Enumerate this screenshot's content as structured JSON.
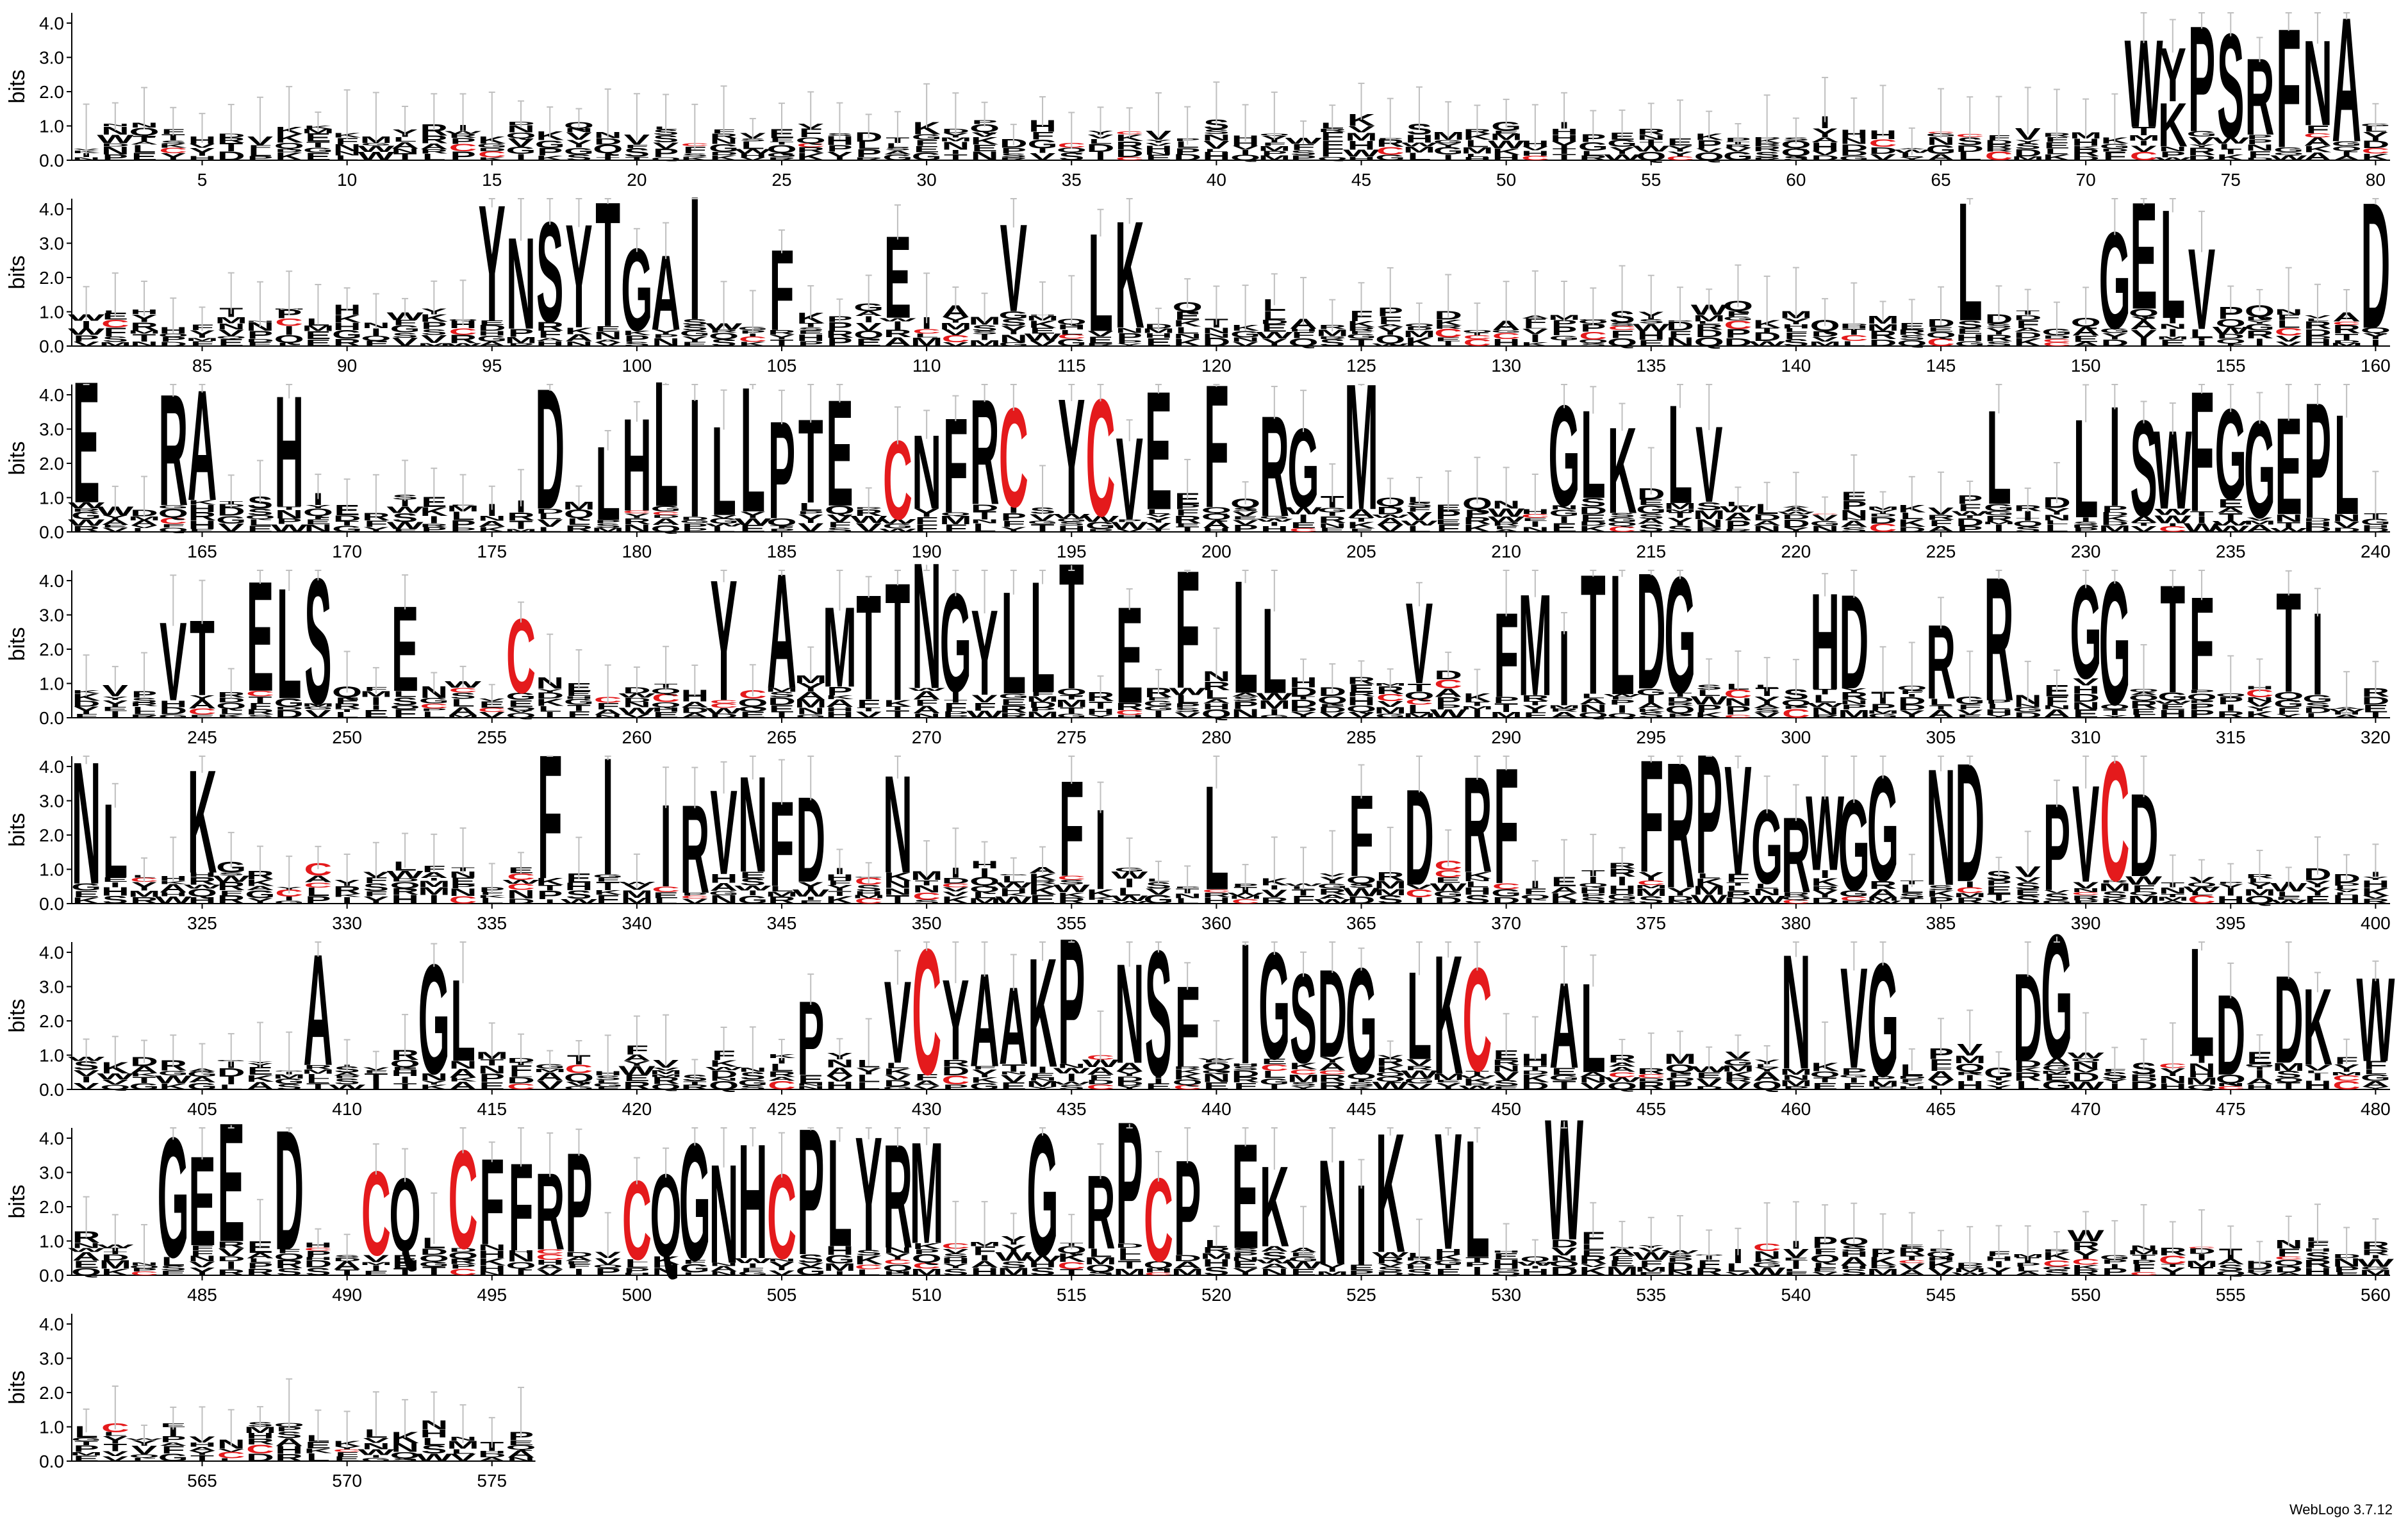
{
  "chart_data": {
    "type": "sequence-logo",
    "ylabel": "bits",
    "y_ticks": [
      "0.0",
      "1.0",
      "2.0",
      "3.0",
      "4.0"
    ],
    "ylim": [
      0,
      4.3
    ],
    "positions_per_row": 80,
    "total_positions": 576,
    "x_tick_interval": 5,
    "rows": 8,
    "highlight_color": "#e41a1c",
    "letter_color": "#000000",
    "errorbar_color": "#bfbfbf",
    "stacks": [
      {
        "pos": 72,
        "letters": "W"
      },
      {
        "pos": 73,
        "letters": "YK"
      },
      {
        "pos": 74,
        "letters": "P"
      },
      {
        "pos": 75,
        "letters": "S"
      },
      {
        "pos": 76,
        "letters": "R"
      },
      {
        "pos": 77,
        "letters": "F"
      },
      {
        "pos": 78,
        "letters": "N"
      },
      {
        "pos": 79,
        "letters": "A"
      },
      {
        "pos": 96,
        "letters": "N"
      },
      {
        "pos": 95,
        "letters": "Y"
      },
      {
        "pos": 97,
        "letters": "S"
      },
      {
        "pos": 98,
        "letters": "Y"
      },
      {
        "pos": 99,
        "letters": "T"
      },
      {
        "pos": 100,
        "letters": "G"
      },
      {
        "pos": 101,
        "letters": "A"
      },
      {
        "pos": 102,
        "letters": "I"
      },
      {
        "pos": 105,
        "letters": "F"
      },
      {
        "pos": 109,
        "letters": "E"
      },
      {
        "pos": 113,
        "letters": "V"
      },
      {
        "pos": 116,
        "letters": "L"
      },
      {
        "pos": 117,
        "letters": "K"
      },
      {
        "pos": 146,
        "letters": "L"
      },
      {
        "pos": 151,
        "letters": "G"
      },
      {
        "pos": 152,
        "letters": "E"
      },
      {
        "pos": 153,
        "letters": "L"
      },
      {
        "pos": 154,
        "letters": "V"
      },
      {
        "pos": 160,
        "letters": "D"
      },
      {
        "pos": 161,
        "letters": "E"
      },
      {
        "pos": 164,
        "letters": "R"
      },
      {
        "pos": 165,
        "letters": "A"
      },
      {
        "pos": 168,
        "letters": "H"
      },
      {
        "pos": 177,
        "letters": "D"
      },
      {
        "pos": 179,
        "letters": "L"
      },
      {
        "pos": 180,
        "letters": "H"
      },
      {
        "pos": 181,
        "letters": "L"
      },
      {
        "pos": 182,
        "letters": "I"
      },
      {
        "pos": 183,
        "letters": "L"
      },
      {
        "pos": 184,
        "letters": "L"
      },
      {
        "pos": 185,
        "letters": "P"
      },
      {
        "pos": 186,
        "letters": "T"
      },
      {
        "pos": 187,
        "letters": "E"
      },
      {
        "pos": 189,
        "letters": "C"
      },
      {
        "pos": 190,
        "letters": "N"
      },
      {
        "pos": 191,
        "letters": "F"
      },
      {
        "pos": 192,
        "letters": "R"
      },
      {
        "pos": 193,
        "letters": "C"
      },
      {
        "pos": 195,
        "letters": "Y"
      },
      {
        "pos": 196,
        "letters": "C"
      },
      {
        "pos": 197,
        "letters": "V"
      },
      {
        "pos": 198,
        "letters": "E"
      },
      {
        "pos": 200,
        "letters": "F"
      },
      {
        "pos": 202,
        "letters": "R"
      },
      {
        "pos": 203,
        "letters": "G"
      },
      {
        "pos": 205,
        "letters": "M"
      },
      {
        "pos": 212,
        "letters": "G"
      },
      {
        "pos": 213,
        "letters": "L"
      },
      {
        "pos": 214,
        "letters": "K"
      },
      {
        "pos": 216,
        "letters": "L"
      },
      {
        "pos": 217,
        "letters": "V"
      },
      {
        "pos": 227,
        "letters": "L"
      },
      {
        "pos": 230,
        "letters": "L"
      },
      {
        "pos": 231,
        "letters": "I"
      },
      {
        "pos": 232,
        "letters": "S"
      },
      {
        "pos": 233,
        "letters": "W"
      },
      {
        "pos": 234,
        "letters": "F"
      },
      {
        "pos": 235,
        "letters": "G"
      },
      {
        "pos": 236,
        "letters": "G"
      },
      {
        "pos": 237,
        "letters": "E"
      },
      {
        "pos": 238,
        "letters": "P"
      },
      {
        "pos": 239,
        "letters": "L"
      },
      {
        "pos": 244,
        "letters": "V"
      },
      {
        "pos": 245,
        "letters": "T"
      },
      {
        "pos": 247,
        "letters": "E"
      },
      {
        "pos": 248,
        "letters": "L"
      },
      {
        "pos": 249,
        "letters": "S"
      },
      {
        "pos": 252,
        "letters": "E"
      },
      {
        "pos": 256,
        "letters": "C"
      },
      {
        "pos": 263,
        "letters": "Y"
      },
      {
        "pos": 265,
        "letters": "A"
      },
      {
        "pos": 267,
        "letters": "M"
      },
      {
        "pos": 268,
        "letters": "T"
      },
      {
        "pos": 269,
        "letters": "T"
      },
      {
        "pos": 270,
        "letters": "N"
      },
      {
        "pos": 271,
        "letters": "G"
      },
      {
        "pos": 272,
        "letters": "Y"
      },
      {
        "pos": 273,
        "letters": "L"
      },
      {
        "pos": 274,
        "letters": "L"
      },
      {
        "pos": 275,
        "letters": "T"
      },
      {
        "pos": 277,
        "letters": "E"
      },
      {
        "pos": 279,
        "letters": "F"
      },
      {
        "pos": 281,
        "letters": "L"
      },
      {
        "pos": 282,
        "letters": "L"
      },
      {
        "pos": 287,
        "letters": "V"
      },
      {
        "pos": 290,
        "letters": "F"
      },
      {
        "pos": 291,
        "letters": "M"
      },
      {
        "pos": 292,
        "letters": "I"
      },
      {
        "pos": 293,
        "letters": "T"
      },
      {
        "pos": 294,
        "letters": "L"
      },
      {
        "pos": 295,
        "letters": "D"
      },
      {
        "pos": 296,
        "letters": "G"
      },
      {
        "pos": 301,
        "letters": "H"
      },
      {
        "pos": 302,
        "letters": "D"
      },
      {
        "pos": 305,
        "letters": "R"
      },
      {
        "pos": 307,
        "letters": "R"
      },
      {
        "pos": 310,
        "letters": "G"
      },
      {
        "pos": 311,
        "letters": "G"
      },
      {
        "pos": 313,
        "letters": "T"
      },
      {
        "pos": 314,
        "letters": "F"
      },
      {
        "pos": 317,
        "letters": "T"
      },
      {
        "pos": 318,
        "letters": "I"
      },
      {
        "pos": 321,
        "letters": "N"
      },
      {
        "pos": 322,
        "letters": "L"
      },
      {
        "pos": 325,
        "letters": "K"
      },
      {
        "pos": 337,
        "letters": "F"
      },
      {
        "pos": 339,
        "letters": "I"
      },
      {
        "pos": 341,
        "letters": "I"
      },
      {
        "pos": 342,
        "letters": "R"
      },
      {
        "pos": 343,
        "letters": "V"
      },
      {
        "pos": 344,
        "letters": "N"
      },
      {
        "pos": 345,
        "letters": "F"
      },
      {
        "pos": 346,
        "letters": "D"
      },
      {
        "pos": 349,
        "letters": "N"
      },
      {
        "pos": 355,
        "letters": "F"
      },
      {
        "pos": 356,
        "letters": "I"
      },
      {
        "pos": 360,
        "letters": "L"
      },
      {
        "pos": 365,
        "letters": "F"
      },
      {
        "pos": 367,
        "letters": "D"
      },
      {
        "pos": 369,
        "letters": "R"
      },
      {
        "pos": 370,
        "letters": "F"
      },
      {
        "pos": 375,
        "letters": "F"
      },
      {
        "pos": 376,
        "letters": "R"
      },
      {
        "pos": 377,
        "letters": "P"
      },
      {
        "pos": 378,
        "letters": "V"
      },
      {
        "pos": 379,
        "letters": "G"
      },
      {
        "pos": 380,
        "letters": "R"
      },
      {
        "pos": 381,
        "letters": "W"
      },
      {
        "pos": 382,
        "letters": "G"
      },
      {
        "pos": 383,
        "letters": "G"
      },
      {
        "pos": 385,
        "letters": "N"
      },
      {
        "pos": 386,
        "letters": "D"
      },
      {
        "pos": 389,
        "letters": "P"
      },
      {
        "pos": 390,
        "letters": "V"
      },
      {
        "pos": 391,
        "letters": "C"
      },
      {
        "pos": 392,
        "letters": "D"
      },
      {
        "pos": 409,
        "letters": "A"
      },
      {
        "pos": 413,
        "letters": "G"
      },
      {
        "pos": 414,
        "letters": "L"
      },
      {
        "pos": 426,
        "letters": "P"
      },
      {
        "pos": 429,
        "letters": "V"
      },
      {
        "pos": 430,
        "letters": "C"
      },
      {
        "pos": 431,
        "letters": "Y"
      },
      {
        "pos": 432,
        "letters": "A"
      },
      {
        "pos": 433,
        "letters": "A"
      },
      {
        "pos": 434,
        "letters": "K"
      },
      {
        "pos": 435,
        "letters": "P"
      },
      {
        "pos": 437,
        "letters": "N"
      },
      {
        "pos": 438,
        "letters": "S"
      },
      {
        "pos": 439,
        "letters": "F"
      },
      {
        "pos": 441,
        "letters": "I"
      },
      {
        "pos": 442,
        "letters": "G"
      },
      {
        "pos": 443,
        "letters": "S"
      },
      {
        "pos": 444,
        "letters": "D"
      },
      {
        "pos": 445,
        "letters": "G"
      },
      {
        "pos": 447,
        "letters": "L"
      },
      {
        "pos": 448,
        "letters": "K"
      },
      {
        "pos": 449,
        "letters": "C"
      },
      {
        "pos": 452,
        "letters": "A"
      },
      {
        "pos": 453,
        "letters": "L"
      },
      {
        "pos": 460,
        "letters": "N"
      },
      {
        "pos": 462,
        "letters": "V"
      },
      {
        "pos": 463,
        "letters": "G"
      },
      {
        "pos": 468,
        "letters": "D"
      },
      {
        "pos": 469,
        "letters": "G"
      },
      {
        "pos": 474,
        "letters": "L"
      },
      {
        "pos": 475,
        "letters": "D"
      },
      {
        "pos": 477,
        "letters": "D"
      },
      {
        "pos": 478,
        "letters": "K"
      },
      {
        "pos": 480,
        "letters": "W"
      },
      {
        "pos": 484,
        "letters": "G"
      },
      {
        "pos": 485,
        "letters": "E"
      },
      {
        "pos": 486,
        "letters": "E"
      },
      {
        "pos": 488,
        "letters": "D"
      },
      {
        "pos": 491,
        "letters": "C"
      },
      {
        "pos": 492,
        "letters": "Q"
      },
      {
        "pos": 494,
        "letters": "C"
      },
      {
        "pos": 495,
        "letters": "F"
      },
      {
        "pos": 496,
        "letters": "F"
      },
      {
        "pos": 497,
        "letters": "R"
      },
      {
        "pos": 498,
        "letters": "P"
      },
      {
        "pos": 500,
        "letters": "C"
      },
      {
        "pos": 501,
        "letters": "Q"
      },
      {
        "pos": 502,
        "letters": "G"
      },
      {
        "pos": 503,
        "letters": "N"
      },
      {
        "pos": 504,
        "letters": "H"
      },
      {
        "pos": 505,
        "letters": "C"
      },
      {
        "pos": 506,
        "letters": "P"
      },
      {
        "pos": 507,
        "letters": "L"
      },
      {
        "pos": 508,
        "letters": "Y"
      },
      {
        "pos": 509,
        "letters": "R"
      },
      {
        "pos": 510,
        "letters": "M"
      },
      {
        "pos": 514,
        "letters": "G"
      },
      {
        "pos": 516,
        "letters": "R"
      },
      {
        "pos": 517,
        "letters": "P"
      },
      {
        "pos": 518,
        "letters": "C"
      },
      {
        "pos": 519,
        "letters": "P"
      },
      {
        "pos": 521,
        "letters": "E"
      },
      {
        "pos": 522,
        "letters": "K"
      },
      {
        "pos": 524,
        "letters": "N"
      },
      {
        "pos": 525,
        "letters": "I"
      },
      {
        "pos": 526,
        "letters": "K"
      },
      {
        "pos": 528,
        "letters": "V"
      },
      {
        "pos": 529,
        "letters": "L"
      },
      {
        "pos": 532,
        "letters": "W"
      }
    ]
  },
  "footer": "WebLogo 3.7.12"
}
